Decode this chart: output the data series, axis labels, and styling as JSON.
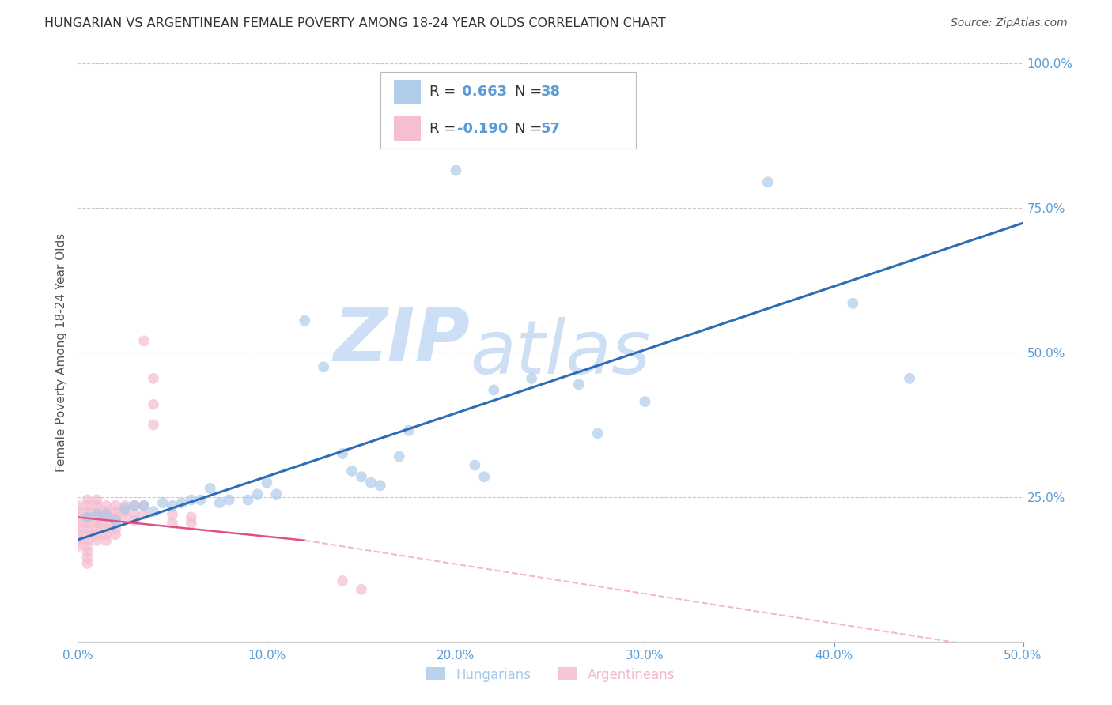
{
  "title": "HUNGARIAN VS ARGENTINEAN FEMALE POVERTY AMONG 18-24 YEAR OLDS CORRELATION CHART",
  "source": "Source: ZipAtlas.com",
  "ylabel": "Female Poverty Among 18-24 Year Olds",
  "xlim": [
    0.0,
    0.5
  ],
  "ylim": [
    0.0,
    1.0
  ],
  "xticks": [
    0.0,
    0.1,
    0.2,
    0.3,
    0.4,
    0.5
  ],
  "yticks_right": [
    0.0,
    0.25,
    0.5,
    0.75,
    1.0
  ],
  "right_yticklabels": [
    "",
    "25.0%",
    "50.0%",
    "75.0%",
    "100.0%"
  ],
  "xticklabels": [
    "0.0%",
    "10.0%",
    "20.0%",
    "30.0%",
    "40.0%",
    "50.0%"
  ],
  "axis_color": "#5b9bd5",
  "background_color": "#ffffff",
  "grid_color": "#c8c8c8",
  "watermark_zip": "ZIP",
  "watermark_atlas": "atlas",
  "watermark_color": "#ccdff5",
  "hungarian_color": "#a8c8e8",
  "argentinean_color": "#f4b8cc",
  "trend_blue_color": "#2e6db4",
  "trend_pink_solid_color": "#e05080",
  "trend_pink_dash_color": "#f4b8cc",
  "point_alpha": 0.65,
  "point_size": 100,
  "hungarian_points": [
    [
      0.005,
      0.215
    ],
    [
      0.01,
      0.22
    ],
    [
      0.015,
      0.22
    ],
    [
      0.02,
      0.21
    ],
    [
      0.025,
      0.23
    ],
    [
      0.03,
      0.235
    ],
    [
      0.035,
      0.235
    ],
    [
      0.04,
      0.225
    ],
    [
      0.045,
      0.24
    ],
    [
      0.05,
      0.235
    ],
    [
      0.055,
      0.24
    ],
    [
      0.06,
      0.245
    ],
    [
      0.065,
      0.245
    ],
    [
      0.07,
      0.265
    ],
    [
      0.075,
      0.24
    ],
    [
      0.08,
      0.245
    ],
    [
      0.09,
      0.245
    ],
    [
      0.095,
      0.255
    ],
    [
      0.1,
      0.275
    ],
    [
      0.105,
      0.255
    ],
    [
      0.12,
      0.555
    ],
    [
      0.13,
      0.475
    ],
    [
      0.14,
      0.325
    ],
    [
      0.145,
      0.295
    ],
    [
      0.15,
      0.285
    ],
    [
      0.155,
      0.275
    ],
    [
      0.16,
      0.27
    ],
    [
      0.17,
      0.32
    ],
    [
      0.175,
      0.365
    ],
    [
      0.2,
      0.815
    ],
    [
      0.21,
      0.305
    ],
    [
      0.215,
      0.285
    ],
    [
      0.22,
      0.435
    ],
    [
      0.24,
      0.455
    ],
    [
      0.265,
      0.445
    ],
    [
      0.275,
      0.36
    ],
    [
      0.3,
      0.415
    ],
    [
      0.365,
      0.795
    ],
    [
      0.41,
      0.585
    ],
    [
      0.44,
      0.455
    ]
  ],
  "argentinean_points": [
    [
      0.0,
      0.235
    ],
    [
      0.0,
      0.225
    ],
    [
      0.0,
      0.215
    ],
    [
      0.0,
      0.205
    ],
    [
      0.0,
      0.195
    ],
    [
      0.0,
      0.185
    ],
    [
      0.0,
      0.175
    ],
    [
      0.0,
      0.165
    ],
    [
      0.005,
      0.245
    ],
    [
      0.005,
      0.235
    ],
    [
      0.005,
      0.225
    ],
    [
      0.005,
      0.215
    ],
    [
      0.005,
      0.205
    ],
    [
      0.005,
      0.195
    ],
    [
      0.005,
      0.185
    ],
    [
      0.005,
      0.175
    ],
    [
      0.005,
      0.165
    ],
    [
      0.005,
      0.155
    ],
    [
      0.005,
      0.145
    ],
    [
      0.005,
      0.135
    ],
    [
      0.01,
      0.245
    ],
    [
      0.01,
      0.235
    ],
    [
      0.01,
      0.225
    ],
    [
      0.01,
      0.215
    ],
    [
      0.01,
      0.205
    ],
    [
      0.01,
      0.195
    ],
    [
      0.01,
      0.185
    ],
    [
      0.01,
      0.175
    ],
    [
      0.015,
      0.235
    ],
    [
      0.015,
      0.225
    ],
    [
      0.015,
      0.215
    ],
    [
      0.015,
      0.205
    ],
    [
      0.015,
      0.195
    ],
    [
      0.015,
      0.185
    ],
    [
      0.015,
      0.175
    ],
    [
      0.02,
      0.235
    ],
    [
      0.02,
      0.225
    ],
    [
      0.02,
      0.215
    ],
    [
      0.02,
      0.205
    ],
    [
      0.02,
      0.195
    ],
    [
      0.02,
      0.185
    ],
    [
      0.025,
      0.235
    ],
    [
      0.025,
      0.225
    ],
    [
      0.025,
      0.215
    ],
    [
      0.03,
      0.235
    ],
    [
      0.03,
      0.22
    ],
    [
      0.03,
      0.21
    ],
    [
      0.035,
      0.52
    ],
    [
      0.035,
      0.235
    ],
    [
      0.035,
      0.22
    ],
    [
      0.04,
      0.455
    ],
    [
      0.04,
      0.41
    ],
    [
      0.04,
      0.375
    ],
    [
      0.05,
      0.22
    ],
    [
      0.05,
      0.205
    ],
    [
      0.06,
      0.215
    ],
    [
      0.06,
      0.205
    ],
    [
      0.14,
      0.105
    ],
    [
      0.15,
      0.09
    ]
  ],
  "hun_trend": [
    0.0,
    0.176,
    0.5,
    0.724
  ],
  "arg_trend_solid": [
    0.0,
    0.215,
    0.12,
    0.175
  ],
  "arg_trend_dash": [
    0.12,
    0.175,
    0.5,
    -0.02
  ]
}
